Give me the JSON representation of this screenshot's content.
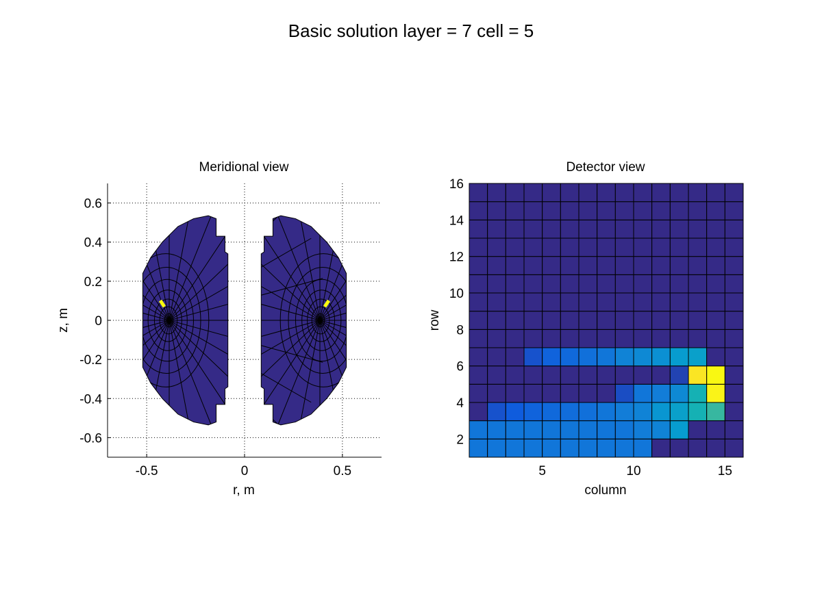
{
  "figure": {
    "title": "Basic solution layer = 7 cell = 5"
  },
  "chart_data": [
    {
      "type": "diagram",
      "title": "Meridional view",
      "xlabel": "r, m",
      "ylabel": "z, m",
      "xlim": [
        -0.7,
        0.7
      ],
      "ylim": [
        -0.7,
        0.7
      ],
      "xticks": [
        -0.5,
        0,
        0.5
      ],
      "yticks": [
        -0.6,
        -0.4,
        -0.2,
        0,
        0.2,
        0.4,
        0.6
      ],
      "grid": true,
      "magnetic_axis_r": 0.385,
      "plasma_boundary_lcfs": [
        [
          0.62,
          0.24
        ],
        [
          0.58,
          0.32
        ],
        [
          0.5,
          0.42
        ],
        [
          0.4,
          0.5
        ],
        [
          0.3,
          0.535
        ],
        [
          0.24,
          0.53
        ],
        [
          0.24,
          0.24
        ],
        [
          0.24,
          0.0
        ],
        [
          0.24,
          -0.24
        ],
        [
          0.24,
          -0.53
        ],
        [
          0.3,
          -0.535
        ],
        [
          0.4,
          -0.5
        ],
        [
          0.5,
          -0.42
        ],
        [
          0.58,
          -0.32
        ],
        [
          0.62,
          -0.24
        ],
        [
          0.62,
          0.0
        ]
      ],
      "highlighted_cell": {
        "r": 0.42,
        "z": 0.08,
        "color": "#ffff00"
      },
      "fill_color": "#352a87",
      "highlight_color": "#f9fb0e"
    },
    {
      "type": "heatmap",
      "title": "Detector view",
      "xlabel": "column",
      "ylabel": "row",
      "xlim": [
        1,
        16
      ],
      "ylim": [
        1,
        16
      ],
      "xticks": [
        5,
        10,
        15
      ],
      "yticks": [
        2,
        4,
        6,
        8,
        10,
        12,
        14,
        16
      ],
      "colormap": "parula",
      "clim": [
        0,
        1
      ],
      "values": [
        [
          0.18,
          0.18,
          0.18,
          0.18,
          0.18,
          0.18,
          0.18,
          0.18,
          0.18,
          0.18,
          0.0,
          0.0,
          0.0,
          0.0,
          0.0
        ],
        [
          0.18,
          0.18,
          0.18,
          0.18,
          0.18,
          0.18,
          0.18,
          0.18,
          0.18,
          0.2,
          0.22,
          0.3,
          0.0,
          0.0,
          0.0
        ],
        [
          0.0,
          0.08,
          0.1,
          0.12,
          0.14,
          0.15,
          0.16,
          0.18,
          0.2,
          0.22,
          0.28,
          0.32,
          0.4,
          0.45,
          0.0
        ],
        [
          0.0,
          0.0,
          0.0,
          0.0,
          0.0,
          0.0,
          0.0,
          0.0,
          0.07,
          0.18,
          0.2,
          0.24,
          0.4,
          0.95,
          0.0
        ],
        [
          0.0,
          0.0,
          0.0,
          0.0,
          0.0,
          0.0,
          0.0,
          0.0,
          0.0,
          0.0,
          0.0,
          0.05,
          0.88,
          0.98,
          0.0
        ],
        [
          0.0,
          0.0,
          0.0,
          0.08,
          0.12,
          0.14,
          0.16,
          0.18,
          0.22,
          0.24,
          0.26,
          0.3,
          0.32,
          0.0,
          0.0
        ],
        [
          0.0,
          0.0,
          0.0,
          0.0,
          0.0,
          0.0,
          0.0,
          0.0,
          0.0,
          0.0,
          0.0,
          0.0,
          0.0,
          0.0,
          0.0
        ],
        [
          0.0,
          0.0,
          0.0,
          0.0,
          0.0,
          0.0,
          0.0,
          0.0,
          0.0,
          0.0,
          0.0,
          0.0,
          0.0,
          0.0,
          0.0
        ],
        [
          0.0,
          0.0,
          0.0,
          0.0,
          0.0,
          0.0,
          0.0,
          0.0,
          0.0,
          0.0,
          0.0,
          0.0,
          0.0,
          0.0,
          0.0
        ],
        [
          0.0,
          0.0,
          0.0,
          0.0,
          0.0,
          0.0,
          0.0,
          0.0,
          0.0,
          0.0,
          0.0,
          0.0,
          0.0,
          0.0,
          0.0
        ],
        [
          0.0,
          0.0,
          0.0,
          0.0,
          0.0,
          0.0,
          0.0,
          0.0,
          0.0,
          0.0,
          0.0,
          0.0,
          0.0,
          0.0,
          0.0
        ],
        [
          0.0,
          0.0,
          0.0,
          0.0,
          0.0,
          0.0,
          0.0,
          0.0,
          0.0,
          0.0,
          0.0,
          0.0,
          0.0,
          0.0,
          0.0
        ],
        [
          0.0,
          0.0,
          0.0,
          0.0,
          0.0,
          0.0,
          0.0,
          0.0,
          0.0,
          0.0,
          0.0,
          0.0,
          0.0,
          0.0,
          0.0
        ],
        [
          0.0,
          0.0,
          0.0,
          0.0,
          0.0,
          0.0,
          0.0,
          0.0,
          0.0,
          0.0,
          0.0,
          0.0,
          0.0,
          0.0,
          0.0
        ],
        [
          0.0,
          0.0,
          0.0,
          0.0,
          0.0,
          0.0,
          0.0,
          0.0,
          0.0,
          0.0,
          0.0,
          0.0,
          0.0,
          0.0,
          0.0
        ]
      ]
    }
  ]
}
